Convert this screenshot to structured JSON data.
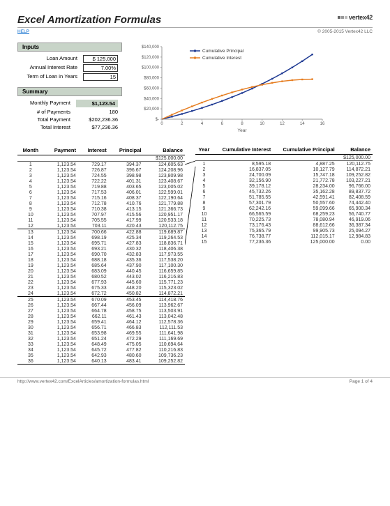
{
  "header": {
    "title": "Excel Amortization Formulas",
    "logo_text": "vertex42",
    "help_link": "HELP",
    "copyright": "© 2005-2015 Vertex42 LLC"
  },
  "inputs": {
    "section_title": "Inputs",
    "loan_amount_label": "Loan Amount",
    "loan_amount_value": "$   125,000",
    "rate_label": "Annual Interest Rate",
    "rate_value": "7.00%",
    "term_label": "Term of Loan in Years",
    "term_value": "15"
  },
  "summary": {
    "section_title": "Summary",
    "monthly_label": "Monthly Payment",
    "monthly_value": "$1,123.54",
    "num_payments_label": "# of Payments",
    "num_payments_value": "180",
    "total_payment_label": "Total Payment",
    "total_payment_value": "$202,236.36",
    "total_interest_label": "Total Interest",
    "total_interest_value": "$77,236.36"
  },
  "chart": {
    "type": "line",
    "legend": [
      "Cumulative Principal",
      "Cumulative Interest"
    ],
    "series_colors": [
      "#1f3a93",
      "#e67e22"
    ],
    "x_label": "Year",
    "x_ticks": [
      0,
      2,
      4,
      6,
      8,
      10,
      12,
      14,
      16
    ],
    "y_ticks": [
      "$-",
      "$20,000",
      "$40,000",
      "$60,000",
      "$80,000",
      "$100,000",
      "$120,000",
      "$140,000"
    ],
    "y_max": 140000,
    "x_max": 16,
    "background_color": "#ffffff",
    "grid_color": "#cccccc",
    "label_fontsize": 7,
    "principal_series": [
      {
        "x": 1,
        "y": 4887.25
      },
      {
        "x": 2,
        "y": 10127.79
      },
      {
        "x": 3,
        "y": 15747.18
      },
      {
        "x": 4,
        "y": 21772.78
      },
      {
        "x": 5,
        "y": 28234.0
      },
      {
        "x": 6,
        "y": 35162.28
      },
      {
        "x": 7,
        "y": 42591.41
      },
      {
        "x": 8,
        "y": 50557.6
      },
      {
        "x": 9,
        "y": 59099.66
      },
      {
        "x": 10,
        "y": 68259.23
      },
      {
        "x": 11,
        "y": 78080.94
      },
      {
        "x": 12,
        "y": 88612.66
      },
      {
        "x": 13,
        "y": 99905.73
      },
      {
        "x": 14,
        "y": 112015.17
      },
      {
        "x": 15,
        "y": 125000.0
      }
    ],
    "interest_series": [
      {
        "x": 1,
        "y": 8595.18
      },
      {
        "x": 2,
        "y": 16837.05
      },
      {
        "x": 3,
        "y": 24700.09
      },
      {
        "x": 4,
        "y": 32156.9
      },
      {
        "x": 5,
        "y": 39178.12
      },
      {
        "x": 6,
        "y": 45732.26
      },
      {
        "x": 7,
        "y": 51785.55
      },
      {
        "x": 8,
        "y": 57301.79
      },
      {
        "x": 9,
        "y": 62242.16
      },
      {
        "x": 10,
        "y": 66565.59
      },
      {
        "x": 11,
        "y": 70225.73
      },
      {
        "x": 12,
        "y": 73176.43
      },
      {
        "x": 13,
        "y": 75365.79
      },
      {
        "x": 14,
        "y": 76738.77
      },
      {
        "x": 15,
        "y": 77236.36
      }
    ]
  },
  "monthly_table": {
    "headers": [
      "Month",
      "Payment",
      "Interest",
      "Principal",
      "Balance"
    ],
    "start_balance": "$125,000.00",
    "rows": [
      [
        "1",
        "1,123.54",
        "729.17",
        "394.37",
        "124,605.63"
      ],
      [
        "2",
        "1,123.54",
        "726.87",
        "396.67",
        "124,208.96"
      ],
      [
        "3",
        "1,123.54",
        "724.55",
        "398.98",
        "123,809.98"
      ],
      [
        "4",
        "1,123.54",
        "722.22",
        "401.31",
        "123,408.67"
      ],
      [
        "5",
        "1,123.54",
        "719.88",
        "403.65",
        "123,005.02"
      ],
      [
        "6",
        "1,123.54",
        "717.53",
        "406.01",
        "122,599.01"
      ],
      [
        "7",
        "1,123.54",
        "715.16",
        "408.37",
        "122,190.64"
      ],
      [
        "8",
        "1,123.54",
        "712.78",
        "410.76",
        "121,779.88"
      ],
      [
        "9",
        "1,123.54",
        "710.38",
        "413.15",
        "121,366.73"
      ],
      [
        "10",
        "1,123.54",
        "707.97",
        "415.56",
        "120,951.17"
      ],
      [
        "11",
        "1,123.54",
        "705.55",
        "417.99",
        "120,533.18"
      ],
      [
        "12",
        "1,123.54",
        "703.11",
        "420.43",
        "120,112.75"
      ],
      [
        "13",
        "1,123.54",
        "700.66",
        "422.88",
        "119,689.87"
      ],
      [
        "14",
        "1,123.54",
        "698.19",
        "425.34",
        "119,264.53"
      ],
      [
        "15",
        "1,123.54",
        "695.71",
        "427.83",
        "118,836.71"
      ],
      [
        "16",
        "1,123.54",
        "693.21",
        "430.32",
        "118,406.38"
      ],
      [
        "17",
        "1,123.54",
        "690.70",
        "432.83",
        "117,973.55"
      ],
      [
        "18",
        "1,123.54",
        "688.18",
        "435.36",
        "117,538.20"
      ],
      [
        "19",
        "1,123.54",
        "685.64",
        "437.90",
        "117,100.30"
      ],
      [
        "20",
        "1,123.54",
        "683.09",
        "440.45",
        "116,659.85"
      ],
      [
        "21",
        "1,123.54",
        "680.52",
        "443.02",
        "116,216.83"
      ],
      [
        "22",
        "1,123.54",
        "677.93",
        "445.60",
        "115,771.23"
      ],
      [
        "23",
        "1,123.54",
        "675.33",
        "448.20",
        "115,323.02"
      ],
      [
        "24",
        "1,123.54",
        "672.72",
        "450.82",
        "114,872.21"
      ],
      [
        "25",
        "1,123.54",
        "670.09",
        "453.45",
        "114,418.76"
      ],
      [
        "26",
        "1,123.54",
        "667.44",
        "456.09",
        "113,962.67"
      ],
      [
        "27",
        "1,123.54",
        "664.78",
        "458.75",
        "113,503.91"
      ],
      [
        "28",
        "1,123.54",
        "662.11",
        "461.43",
        "113,042.48"
      ],
      [
        "29",
        "1,123.54",
        "659.41",
        "464.12",
        "112,578.36"
      ],
      [
        "30",
        "1,123.54",
        "656.71",
        "466.83",
        "112,111.53"
      ],
      [
        "31",
        "1,123.54",
        "653.98",
        "469.55",
        "111,641.98"
      ],
      [
        "32",
        "1,123.54",
        "651.24",
        "472.29",
        "111,169.69"
      ],
      [
        "33",
        "1,123.54",
        "648.49",
        "475.05",
        "110,694.64"
      ],
      [
        "34",
        "1,123.54",
        "645.72",
        "477.82",
        "110,216.83"
      ],
      [
        "35",
        "1,123.54",
        "642.93",
        "480.60",
        "109,736.23"
      ],
      [
        "36",
        "1,123.54",
        "640.13",
        "483.41",
        "109,252.82"
      ]
    ]
  },
  "yearly_table": {
    "headers": [
      "Year",
      "Cumulative Interest",
      "Cumulative Principal",
      "Balance"
    ],
    "start_balance": "$125,000.00",
    "rows": [
      [
        "1",
        "8,595.18",
        "4,887.25",
        "120,112.75"
      ],
      [
        "2",
        "16,837.05",
        "10,127.79",
        "114,872.21"
      ],
      [
        "3",
        "24,700.09",
        "15,747.18",
        "109,252.82"
      ],
      [
        "4",
        "32,156.90",
        "21,772.78",
        "103,227.21"
      ],
      [
        "5",
        "39,178.12",
        "28,234.00",
        "96,766.00"
      ],
      [
        "6",
        "45,732.26",
        "35,162.28",
        "89,837.72"
      ],
      [
        "7",
        "51,785.55",
        "42,591.41",
        "82,408.59"
      ],
      [
        "8",
        "57,301.79",
        "50,557.60",
        "74,442.40"
      ],
      [
        "9",
        "62,242.16",
        "59,099.66",
        "65,900.34"
      ],
      [
        "10",
        "66,565.59",
        "68,259.23",
        "56,740.77"
      ],
      [
        "11",
        "70,225.73",
        "78,080.94",
        "46,919.06"
      ],
      [
        "12",
        "73,176.43",
        "88,612.66",
        "36,387.34"
      ],
      [
        "13",
        "75,365.79",
        "99,905.73",
        "25,094.27"
      ],
      [
        "14",
        "76,738.77",
        "112,015.17",
        "12,984.83"
      ],
      [
        "15",
        "77,236.36",
        "125,000.00",
        "0.00"
      ]
    ]
  },
  "footer": {
    "url": "http://www.vertex42.com/ExcelArticles/amortization-formulas.html",
    "page": "Page 1 of 4"
  }
}
